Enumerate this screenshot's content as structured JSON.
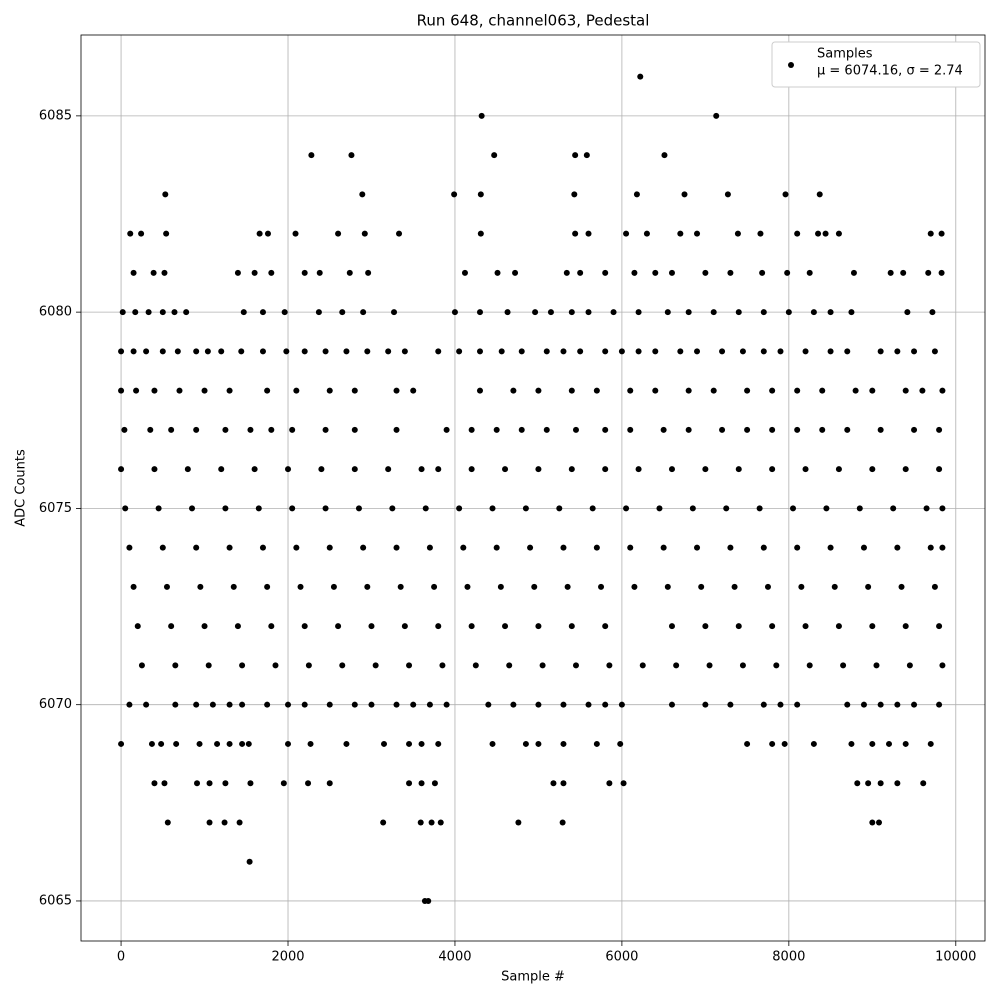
{
  "chart_data": {
    "type": "scatter",
    "title": "Run 648, channel063, Pedestal",
    "x_label": "Sample #",
    "y_label": "ADC Counts",
    "xlim": [
      -480,
      10350
    ],
    "ylim": [
      6063.98,
      6087.06
    ],
    "xticks": [
      0,
      2000,
      4000,
      6000,
      8000,
      10000
    ],
    "yticks": [
      6065,
      6070,
      6075,
      6080,
      6085
    ],
    "grid": true,
    "legend_position": "upper right",
    "legend_stats": "μ = 6074.16, σ = 2.74",
    "series": [
      {
        "name": "Samples",
        "color": "#000000",
        "x": [
          6220,
          4320,
          7130,
          2280,
          2760,
          4470,
          5440,
          5580,
          6510,
          530,
          2890,
          3990,
          4310,
          5430,
          6180,
          6750,
          7270,
          7960,
          8370,
          1540,
          3640,
          3680,
          560,
          1060,
          1240,
          1420,
          3140,
          3590,
          3720,
          3830,
          4760,
          5290,
          9000,
          9080,
          110,
          240,
          540,
          1660,
          1760,
          2090,
          2600,
          2920,
          3330,
          4310,
          5440,
          5600,
          6050,
          6300,
          6700,
          6900,
          7390,
          7660,
          8100,
          8350,
          8440,
          8600,
          9700,
          9830,
          150,
          390,
          520,
          1400,
          1600,
          1800,
          2200,
          2380,
          2740,
          2960,
          4120,
          4510,
          4720,
          5340,
          5500,
          5800,
          6150,
          6400,
          6600,
          7000,
          7300,
          7680,
          7980,
          8250,
          8780,
          9220,
          9370,
          9670,
          9830,
          20,
          170,
          330,
          500,
          640,
          780,
          1470,
          1700,
          1960,
          2370,
          2650,
          2900,
          3270,
          4000,
          4300,
          4630,
          4960,
          5150,
          5400,
          5600,
          5900,
          6200,
          6550,
          6800,
          7100,
          7400,
          7700,
          8000,
          8300,
          8500,
          8750,
          9420,
          9720,
          0,
          150,
          300,
          500,
          680,
          900,
          1040,
          1200,
          1440,
          1700,
          1980,
          2200,
          2450,
          2700,
          2950,
          3200,
          3400,
          3800,
          4050,
          4300,
          4560,
          4800,
          5100,
          5300,
          5500,
          5800,
          6000,
          6200,
          6400,
          6700,
          6900,
          7200,
          7450,
          7700,
          7900,
          8200,
          8500,
          8700,
          9100,
          9300,
          9500,
          9750,
          0,
          180,
          400,
          700,
          1000,
          1300,
          1750,
          2100,
          2500,
          2800,
          3300,
          3500,
          4300,
          4700,
          5000,
          5400,
          5700,
          6100,
          6400,
          6800,
          7100,
          7500,
          7800,
          8100,
          8400,
          8800,
          9000,
          9400,
          9600,
          9840,
          40,
          350,
          600,
          900,
          1250,
          1550,
          1800,
          2050,
          2450,
          2800,
          3300,
          3900,
          4200,
          4500,
          4800,
          5100,
          5450,
          5800,
          6100,
          6500,
          6800,
          7200,
          7500,
          7800,
          8100,
          8400,
          8700,
          9100,
          9500,
          9800,
          0,
          400,
          800,
          1200,
          1600,
          2000,
          2400,
          2800,
          3200,
          3600,
          3800,
          4200,
          4600,
          5000,
          5400,
          5800,
          6200,
          6600,
          7000,
          7400,
          7800,
          8200,
          8600,
          9000,
          9400,
          9800,
          50,
          450,
          850,
          1250,
          1650,
          2050,
          2450,
          2850,
          3250,
          3650,
          4050,
          4450,
          4850,
          5250,
          5650,
          6050,
          6450,
          6850,
          7250,
          7650,
          8050,
          8450,
          8850,
          9250,
          9650,
          9840,
          100,
          500,
          900,
          1300,
          1700,
          2100,
          2500,
          2900,
          3300,
          3700,
          4100,
          4500,
          4900,
          5300,
          5700,
          6100,
          6500,
          6900,
          7300,
          7700,
          8100,
          8500,
          8900,
          9300,
          9700,
          9840,
          150,
          550,
          950,
          1350,
          1750,
          2150,
          2550,
          2950,
          3350,
          3750,
          4150,
          4550,
          4950,
          5350,
          5750,
          6150,
          6550,
          6950,
          7350,
          7750,
          8150,
          8550,
          8950,
          9350,
          9750,
          200,
          600,
          1000,
          1400,
          1800,
          2200,
          2600,
          3000,
          3400,
          3800,
          4200,
          4600,
          5000,
          5400,
          5800,
          6600,
          7000,
          7400,
          7800,
          8200,
          8600,
          9000,
          9400,
          9800,
          250,
          650,
          1050,
          1450,
          1850,
          2250,
          2650,
          3050,
          3450,
          3850,
          4250,
          4650,
          5050,
          5450,
          5850,
          6250,
          6650,
          7050,
          7450,
          7850,
          8250,
          8650,
          9050,
          9450,
          9840,
          100,
          300,
          650,
          900,
          1100,
          1300,
          1450,
          1750,
          2000,
          2200,
          2500,
          2800,
          3000,
          3300,
          3500,
          3700,
          3900,
          4400,
          4700,
          5000,
          5300,
          5600,
          5800,
          6000,
          6600,
          7000,
          7300,
          7700,
          7900,
          8100,
          8700,
          8900,
          9100,
          9300,
          9500,
          9800,
          0,
          370,
          480,
          660,
          940,
          1150,
          1300,
          1450,
          1530,
          2000,
          2270,
          2700,
          3150,
          3450,
          3600,
          3800,
          4450,
          4850,
          5000,
          5300,
          5700,
          5980,
          7500,
          7800,
          7950,
          8300,
          8750,
          9000,
          9200,
          9400,
          9700,
          400,
          520,
          910,
          1060,
          1250,
          1550,
          1950,
          2240,
          2500,
          3450,
          3600,
          3760,
          5180,
          5300,
          5850,
          6020,
          8820,
          8950,
          9100,
          9300,
          9610
        ],
        "values": [
          6086,
          6085,
          6085,
          6084,
          6084,
          6084,
          6084,
          6084,
          6084,
          6083,
          6083,
          6083,
          6083,
          6083,
          6083,
          6083,
          6083,
          6083,
          6083,
          6066,
          6065,
          6065,
          6067,
          6067,
          6067,
          6067,
          6067,
          6067,
          6067,
          6067,
          6067,
          6067,
          6067,
          6067,
          6082,
          6082,
          6082,
          6082,
          6082,
          6082,
          6082,
          6082,
          6082,
          6082,
          6082,
          6082,
          6082,
          6082,
          6082,
          6082,
          6082,
          6082,
          6082,
          6082,
          6082,
          6082,
          6082,
          6082,
          6081,
          6081,
          6081,
          6081,
          6081,
          6081,
          6081,
          6081,
          6081,
          6081,
          6081,
          6081,
          6081,
          6081,
          6081,
          6081,
          6081,
          6081,
          6081,
          6081,
          6081,
          6081,
          6081,
          6081,
          6081,
          6081,
          6081,
          6081,
          6081,
          6080,
          6080,
          6080,
          6080,
          6080,
          6080,
          6080,
          6080,
          6080,
          6080,
          6080,
          6080,
          6080,
          6080,
          6080,
          6080,
          6080,
          6080,
          6080,
          6080,
          6080,
          6080,
          6080,
          6080,
          6080,
          6080,
          6080,
          6080,
          6080,
          6080,
          6080,
          6080,
          6080,
          6079,
          6079,
          6079,
          6079,
          6079,
          6079,
          6079,
          6079,
          6079,
          6079,
          6079,
          6079,
          6079,
          6079,
          6079,
          6079,
          6079,
          6079,
          6079,
          6079,
          6079,
          6079,
          6079,
          6079,
          6079,
          6079,
          6079,
          6079,
          6079,
          6079,
          6079,
          6079,
          6079,
          6079,
          6079,
          6079,
          6079,
          6079,
          6079,
          6079,
          6079,
          6079,
          6078,
          6078,
          6078,
          6078,
          6078,
          6078,
          6078,
          6078,
          6078,
          6078,
          6078,
          6078,
          6078,
          6078,
          6078,
          6078,
          6078,
          6078,
          6078,
          6078,
          6078,
          6078,
          6078,
          6078,
          6078,
          6078,
          6078,
          6078,
          6078,
          6078,
          6077,
          6077,
          6077,
          6077,
          6077,
          6077,
          6077,
          6077,
          6077,
          6077,
          6077,
          6077,
          6077,
          6077,
          6077,
          6077,
          6077,
          6077,
          6077,
          6077,
          6077,
          6077,
          6077,
          6077,
          6077,
          6077,
          6077,
          6077,
          6077,
          6077,
          6076,
          6076,
          6076,
          6076,
          6076,
          6076,
          6076,
          6076,
          6076,
          6076,
          6076,
          6076,
          6076,
          6076,
          6076,
          6076,
          6076,
          6076,
          6076,
          6076,
          6076,
          6076,
          6076,
          6076,
          6076,
          6076,
          6075,
          6075,
          6075,
          6075,
          6075,
          6075,
          6075,
          6075,
          6075,
          6075,
          6075,
          6075,
          6075,
          6075,
          6075,
          6075,
          6075,
          6075,
          6075,
          6075,
          6075,
          6075,
          6075,
          6075,
          6075,
          6075,
          6074,
          6074,
          6074,
          6074,
          6074,
          6074,
          6074,
          6074,
          6074,
          6074,
          6074,
          6074,
          6074,
          6074,
          6074,
          6074,
          6074,
          6074,
          6074,
          6074,
          6074,
          6074,
          6074,
          6074,
          6074,
          6074,
          6073,
          6073,
          6073,
          6073,
          6073,
          6073,
          6073,
          6073,
          6073,
          6073,
          6073,
          6073,
          6073,
          6073,
          6073,
          6073,
          6073,
          6073,
          6073,
          6073,
          6073,
          6073,
          6073,
          6073,
          6073,
          6072,
          6072,
          6072,
          6072,
          6072,
          6072,
          6072,
          6072,
          6072,
          6072,
          6072,
          6072,
          6072,
          6072,
          6072,
          6072,
          6072,
          6072,
          6072,
          6072,
          6072,
          6072,
          6072,
          6072,
          6071,
          6071,
          6071,
          6071,
          6071,
          6071,
          6071,
          6071,
          6071,
          6071,
          6071,
          6071,
          6071,
          6071,
          6071,
          6071,
          6071,
          6071,
          6071,
          6071,
          6071,
          6071,
          6071,
          6071,
          6071,
          6070,
          6070,
          6070,
          6070,
          6070,
          6070,
          6070,
          6070,
          6070,
          6070,
          6070,
          6070,
          6070,
          6070,
          6070,
          6070,
          6070,
          6070,
          6070,
          6070,
          6070,
          6070,
          6070,
          6070,
          6070,
          6070,
          6070,
          6070,
          6070,
          6070,
          6070,
          6070,
          6070,
          6070,
          6070,
          6070,
          6069,
          6069,
          6069,
          6069,
          6069,
          6069,
          6069,
          6069,
          6069,
          6069,
          6069,
          6069,
          6069,
          6069,
          6069,
          6069,
          6069,
          6069,
          6069,
          6069,
          6069,
          6069,
          6069,
          6069,
          6069,
          6069,
          6069,
          6069,
          6069,
          6069,
          6069,
          6068,
          6068,
          6068,
          6068,
          6068,
          6068,
          6068,
          6068,
          6068,
          6068,
          6068,
          6068,
          6068,
          6068,
          6068,
          6068,
          6068,
          6068,
          6068,
          6068,
          6068
        ]
      }
    ]
  }
}
